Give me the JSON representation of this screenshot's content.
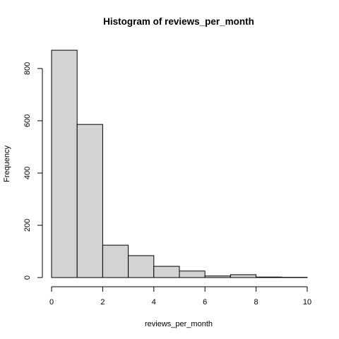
{
  "chart_data": {
    "type": "histogram",
    "title": "Histogram of reviews_per_month",
    "xlabel": "reviews_per_month",
    "ylabel": "Frequency",
    "bins": [
      {
        "x0": 0,
        "x1": 1,
        "count": 870
      },
      {
        "x0": 1,
        "x1": 2,
        "count": 586
      },
      {
        "x0": 2,
        "x1": 3,
        "count": 124
      },
      {
        "x0": 3,
        "x1": 4,
        "count": 84
      },
      {
        "x0": 4,
        "x1": 5,
        "count": 43
      },
      {
        "x0": 5,
        "x1": 6,
        "count": 25
      },
      {
        "x0": 6,
        "x1": 7,
        "count": 6
      },
      {
        "x0": 7,
        "x1": 8,
        "count": 11
      },
      {
        "x0": 8,
        "x1": 9,
        "count": 2
      },
      {
        "x0": 9,
        "x1": 10,
        "count": 1
      }
    ],
    "xlim": [
      0,
      10
    ],
    "ylim": [
      0,
      870
    ],
    "xticks": [
      0,
      2,
      4,
      6,
      8,
      10
    ],
    "yticks": [
      0,
      200,
      400,
      600,
      800
    ],
    "bar_fill": "#d3d3d3",
    "bar_stroke": "#000000",
    "grid": false,
    "legend": "none"
  }
}
